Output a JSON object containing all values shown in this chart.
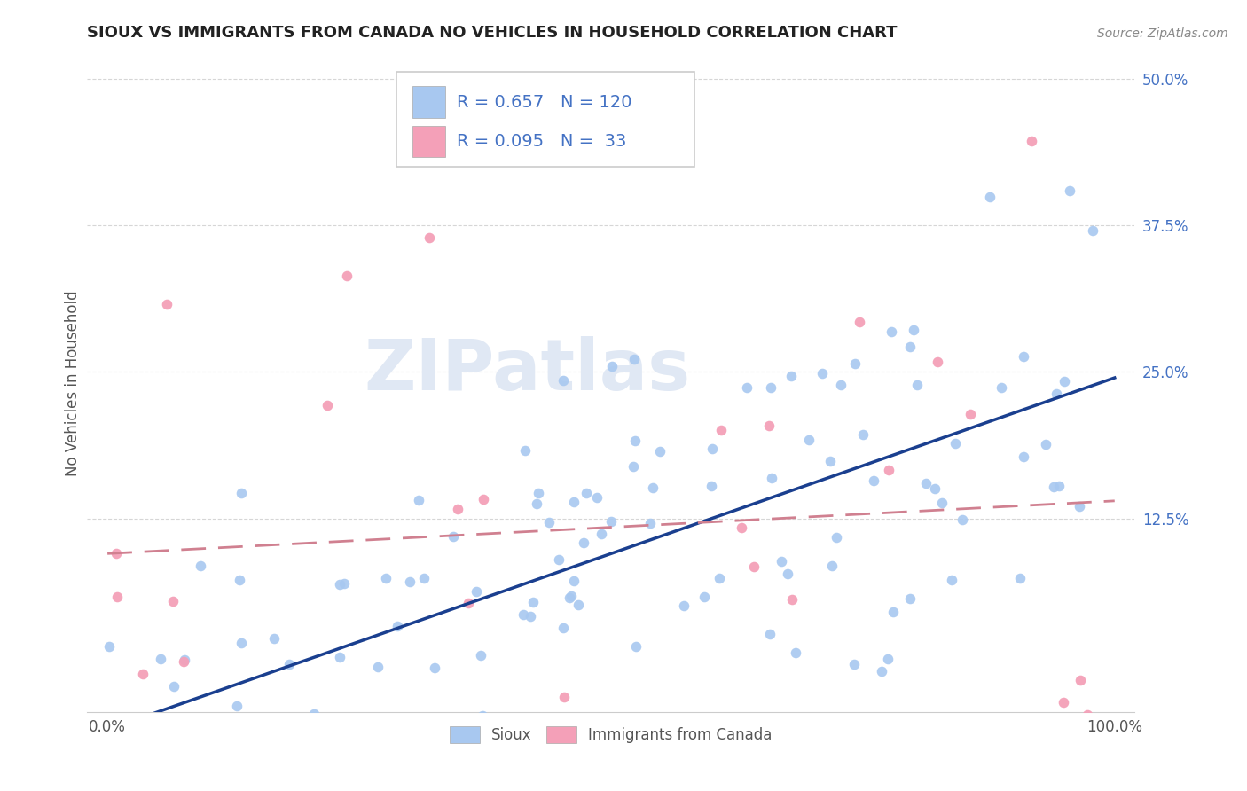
{
  "title": "SIOUX VS IMMIGRANTS FROM CANADA NO VEHICLES IN HOUSEHOLD CORRELATION CHART",
  "source_text": "Source: ZipAtlas.com",
  "ylabel": "No Vehicles in Household",
  "watermark": "ZIPatlas",
  "xlim": [
    -0.02,
    1.02
  ],
  "ylim": [
    -0.04,
    0.52
  ],
  "xticks": [
    0.0,
    1.0
  ],
  "xtick_labels": [
    "0.0%",
    "100.0%"
  ],
  "ytick_vals": [
    0.125,
    0.25,
    0.375,
    0.5
  ],
  "ytick_labels": [
    "12.5%",
    "25.0%",
    "37.5%",
    "50.0%"
  ],
  "background_color": "#ffffff",
  "grid_color": "#cccccc",
  "title_color": "#222222",
  "axis_label_color": "#555555",
  "ytick_color": "#4472c4",
  "sioux_dot_color": "#a8c8f0",
  "canada_dot_color": "#f4a0b8",
  "sioux_line_color": "#1a3f8f",
  "canada_line_color": "#d08090",
  "watermark_color": "#e0e8f4",
  "legend_box_color": "#e8e8e8",
  "legend_text_color": "#4472c4",
  "R_sioux": 0.657,
  "N_sioux": 120,
  "R_canada": 0.095,
  "N_canada": 33,
  "sioux_intercept": -0.055,
  "sioux_slope": 0.3,
  "canada_intercept": 0.095,
  "canada_slope": 0.045
}
